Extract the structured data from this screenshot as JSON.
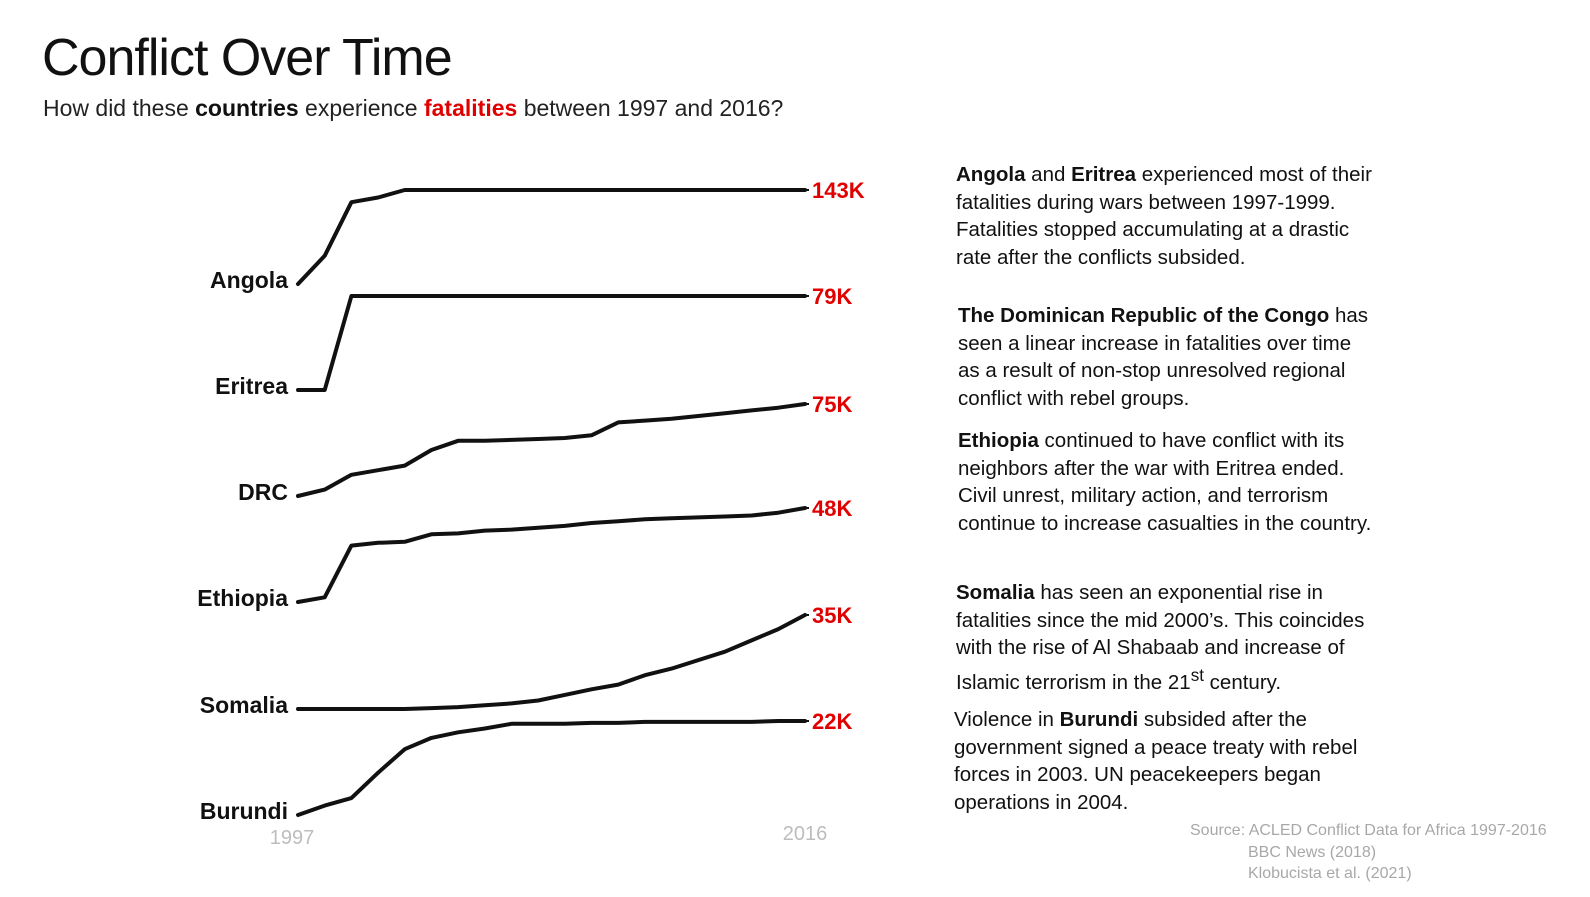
{
  "title": "Conflict Over Time",
  "subtitle": {
    "part1": "How did these ",
    "countries": "countries",
    "part2": " experience ",
    "fatalities": "fatalities",
    "part3": " between 1997 and 2016?"
  },
  "colors": {
    "line": "#111111",
    "value_label": "#e00000",
    "year_label": "#bdbdbd",
    "source_text": "#a8a8a8"
  },
  "chart_data": {
    "type": "line",
    "style": "small-multiples cumulative fatalities",
    "x_start_label": "1997",
    "x_end_label": "2016",
    "x": [
      1997,
      1998,
      1999,
      2000,
      2001,
      2002,
      2003,
      2004,
      2005,
      2006,
      2007,
      2008,
      2009,
      2010,
      2011,
      2012,
      2013,
      2014,
      2015,
      2016
    ],
    "series": [
      {
        "name": "Angola",
        "end_label": "143K",
        "values": [
          0,
          0.3,
          0.87,
          0.92,
          1,
          1,
          1,
          1,
          1,
          1,
          1,
          1,
          1,
          1,
          1,
          1,
          1,
          1,
          1,
          1
        ]
      },
      {
        "name": "Eritrea",
        "end_label": "79K",
        "values": [
          0,
          0,
          1,
          1,
          1,
          1,
          1,
          1,
          1,
          1,
          1,
          1,
          1,
          1,
          1,
          1,
          1,
          1,
          1,
          1
        ]
      },
      {
        "name": "DRC",
        "end_label": "75K",
        "values": [
          0,
          0.07,
          0.23,
          0.28,
          0.33,
          0.5,
          0.6,
          0.6,
          0.61,
          0.62,
          0.63,
          0.66,
          0.8,
          0.82,
          0.84,
          0.87,
          0.9,
          0.93,
          0.96,
          1
        ]
      },
      {
        "name": "Ethiopia",
        "end_label": "48K",
        "values": [
          0,
          0.05,
          0.6,
          0.63,
          0.64,
          0.72,
          0.73,
          0.76,
          0.77,
          0.79,
          0.81,
          0.84,
          0.86,
          0.88,
          0.89,
          0.9,
          0.91,
          0.92,
          0.95,
          1
        ]
      },
      {
        "name": "Somalia",
        "end_label": "35K",
        "values": [
          0,
          0,
          0,
          0,
          0,
          0.01,
          0.02,
          0.04,
          0.06,
          0.09,
          0.15,
          0.21,
          0.26,
          0.36,
          0.43,
          0.52,
          0.61,
          0.73,
          0.85,
          1
        ]
      },
      {
        "name": "Burundi",
        "end_label": "22K",
        "values": [
          0,
          0.1,
          0.18,
          0.45,
          0.7,
          0.82,
          0.88,
          0.92,
          0.97,
          0.97,
          0.97,
          0.98,
          0.98,
          0.99,
          0.99,
          0.99,
          0.99,
          0.99,
          1,
          1
        ]
      }
    ]
  },
  "notes": [
    {
      "lead": "Angola",
      "t1": " and ",
      "lead2": "Eritrea",
      "t2": " experienced most of their fatalities during wars between 1997-1999. Fatalities stopped accumulating at a drastic rate after the conflicts subsided."
    },
    {
      "lead": "The Dominican Republic of the Congo",
      "t1": " has seen a linear increase in fatalities over time as a result of non-stop unresolved regional conflict with rebel groups."
    },
    {
      "lead": "Ethiopia",
      "t1": " continued to have conflict with its neighbors after the war with Eritrea ended. Civil unrest, military action, and terrorism continue to increase casualties in the country."
    },
    {
      "lead": "Somalia",
      "t1": " has seen an exponential rise in fatalities since the mid 2000’s. This coincides with the rise of Al Shabaab and increase of Islamic terrorism in the 21",
      "sup": "st",
      "t2": " century."
    },
    {
      "pre": "Violence in ",
      "lead": "Burundi",
      "t1": " subsided after the government signed a peace treaty with rebel forces in 2003. UN peacekeepers began operations in 2004."
    }
  ],
  "sources": [
    "Source: ACLED Conflict Data for Africa 1997-2016",
    "BBC News (2018)",
    "Klobucista et al. (2021)"
  ]
}
